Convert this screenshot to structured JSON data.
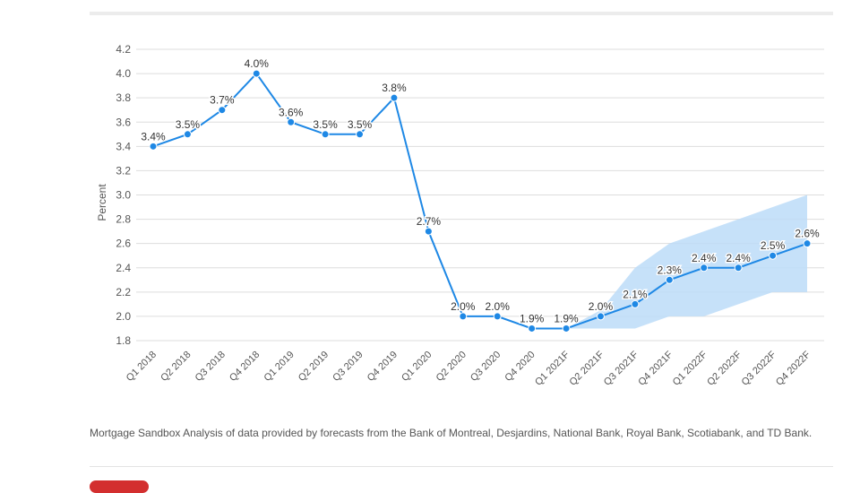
{
  "chart_data": {
    "type": "line",
    "title": "",
    "xlabel": "",
    "ylabel": "Percent",
    "ylim": [
      1.8,
      4.2
    ],
    "yticks": [
      "4.2",
      "4.0",
      "3.8",
      "3.6",
      "3.4",
      "3.2",
      "3.0",
      "2.8",
      "2.6",
      "2.4",
      "2.2",
      "2.0",
      "1.8"
    ],
    "grid": true,
    "categories": [
      "Q1 2018",
      "Q2 2018",
      "Q3 2018",
      "Q4 2018",
      "Q1 2019",
      "Q2 2019",
      "Q3 2019",
      "Q4 2019",
      "Q1 2020",
      "Q2 2020",
      "Q3 2020",
      "Q4 2020",
      "Q1 2021F",
      "Q2 2021F",
      "Q3 2021F",
      "Q4 2021F",
      "Q1 2022F",
      "Q2 2022F",
      "Q3 2022F",
      "Q4 2022F"
    ],
    "series": [
      {
        "values": [
          3.4,
          3.5,
          3.7,
          4.0,
          3.6,
          3.5,
          3.5,
          3.8,
          2.7,
          2.0,
          2.0,
          1.9,
          1.9,
          2.0,
          2.1,
          2.3,
          2.4,
          2.4,
          2.5,
          2.6
        ],
        "labels": [
          "3.4%",
          "3.5%",
          "3.7%",
          "4.0%",
          "3.6%",
          "3.5%",
          "3.5%",
          "3.8%",
          "2.7%",
          "2.0%",
          "2.0%",
          "1.9%",
          "1.9%",
          "2.0%",
          "2.1%",
          "2.3%",
          "2.4%",
          "2.4%",
          "2.5%",
          "2.6%"
        ]
      }
    ],
    "forecast_range": {
      "start_category": "Q1 2021F",
      "upper": [
        1.9,
        2.05,
        2.4,
        2.6,
        2.7,
        2.8,
        2.9,
        3.0
      ],
      "lower": [
        1.9,
        1.9,
        1.9,
        2.0,
        2.0,
        2.1,
        2.2,
        2.2
      ]
    },
    "colors": {
      "line": "#1e88e5",
      "band": "#bcdcf8",
      "grid": "#dddddd",
      "text": "#555555"
    }
  },
  "source_note": "Mortgage Sandbox Analysis of data provided by forecasts from the Bank of Montreal, Desjardins, National Bank, Royal Bank, Scotiabank, and TD Bank."
}
